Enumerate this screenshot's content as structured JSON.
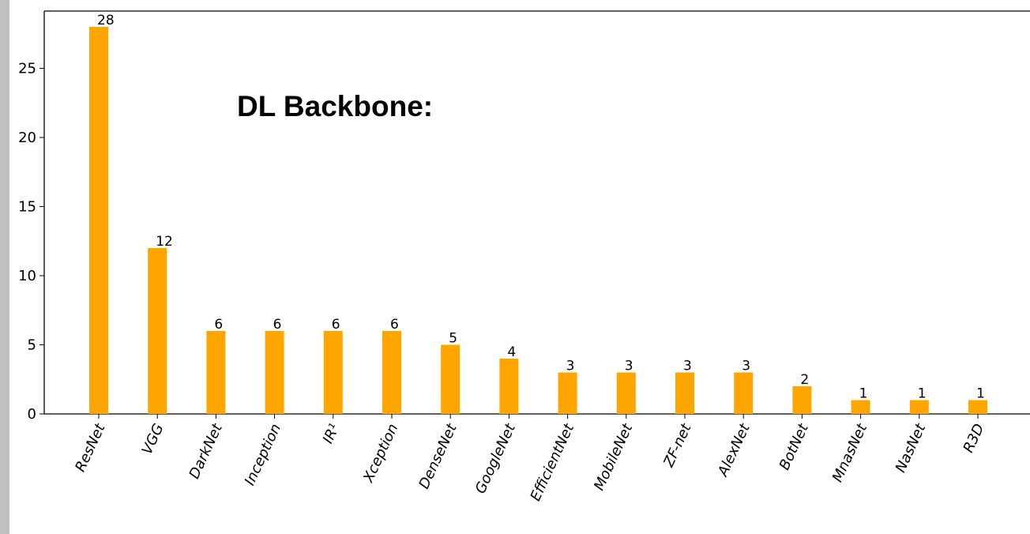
{
  "chart_data": {
    "type": "bar",
    "title": "DL Backbone:",
    "categories": [
      "ResNet",
      "VGG",
      "DarkNet",
      "Inception",
      "IR¹",
      "Xception",
      "DenseNet",
      "GoogleNet",
      "EfficientNet",
      "MobileNet",
      "ZF-net",
      "AlexNet",
      "BotNet",
      "MnasNet",
      "NasNet",
      "R3D"
    ],
    "values": [
      28,
      12,
      6,
      6,
      6,
      6,
      5,
      4,
      3,
      3,
      3,
      3,
      2,
      1,
      1,
      1
    ],
    "ylim": [
      0,
      28
    ],
    "yticks": [
      0,
      5,
      10,
      15,
      20,
      25
    ],
    "bar_color": "#ffa500",
    "grid": false,
    "xlabel": "",
    "ylabel": ""
  }
}
